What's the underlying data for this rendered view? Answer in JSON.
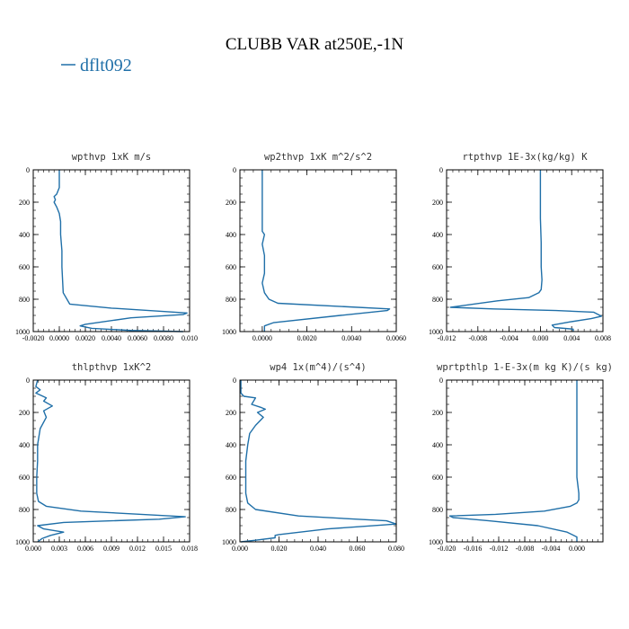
{
  "figure": {
    "title": "CLUBB VAR at250E,-1N",
    "legend": [
      {
        "label": "dflt092"
      }
    ],
    "line_color": "#1f6fa8"
  },
  "chart_data": [
    {
      "type": "line",
      "title": "wpthvp  1xK m/s",
      "xlim": [
        -0.002,
        0.01
      ],
      "ylim": [
        1000,
        0
      ],
      "xticks": [
        -0.002,
        0.0,
        0.002,
        0.004,
        0.006,
        0.008,
        0.01
      ],
      "xtick_labels": [
        "-0.0020",
        "0.0000",
        "0.0020",
        "0.0040",
        "0.0060",
        "0.0080",
        "0.010"
      ],
      "yticks": [
        0,
        200,
        400,
        600,
        800,
        1000
      ],
      "ytick_labels": [
        "0",
        "200",
        "400",
        "600",
        "800",
        "1000"
      ],
      "series": [
        {
          "x": [
            0.0,
            0.0,
            -0.0002,
            -0.0004,
            -0.0003,
            -0.0004,
            -0.0002,
            0.0,
            0.0001,
            0.0001,
            0.0002,
            0.0002,
            0.0003,
            0.0008,
            0.004,
            0.0098,
            0.0095,
            0.0055,
            0.002,
            0.0016,
            0.0025,
            0.0055,
            0.0095
          ],
          "y": [
            0,
            110,
            150,
            165,
            185,
            200,
            230,
            270,
            320,
            400,
            500,
            600,
            760,
            830,
            855,
            885,
            895,
            915,
            955,
            965,
            980,
            993,
            1000
          ]
        }
      ]
    },
    {
      "type": "line",
      "title": "wp2thvp  1xK m^2/s^2",
      "xlim": [
        -0.001,
        0.006
      ],
      "ylim": [
        1000,
        0
      ],
      "xticks": [
        0.0,
        0.002,
        0.004,
        0.006
      ],
      "xtick_labels": [
        "0.0000",
        "0.0020",
        "0.0040",
        "0.0060"
      ],
      "yticks": [
        0,
        200,
        400,
        600,
        800,
        1000
      ],
      "ytick_labels": [
        "0",
        "200",
        "400",
        "600",
        "800",
        "1000"
      ],
      "series": [
        {
          "x": [
            0.0,
            0.0,
            0.0,
            0.0001,
            0.0,
            0.0001,
            0.0001,
            0.0,
            0.0001,
            0.0003,
            0.0007,
            0.0057,
            0.0056,
            0.0035,
            0.0005,
            0.0001,
            0.0001
          ],
          "y": [
            0,
            100,
            380,
            400,
            460,
            530,
            640,
            700,
            760,
            800,
            825,
            860,
            870,
            900,
            945,
            965,
            1000
          ]
        }
      ]
    },
    {
      "type": "line",
      "title": "rtpthvp  1E-3x(kg/kg) K",
      "xlim": [
        -0.012,
        0.008
      ],
      "ylim": [
        1000,
        0
      ],
      "xticks": [
        -0.012,
        -0.008,
        -0.004,
        0.0,
        0.004,
        0.008
      ],
      "xtick_labels": [
        "-0.012",
        "-0.008",
        "-0.004",
        "0.000",
        "0.004",
        "0.008"
      ],
      "yticks": [
        0,
        200,
        400,
        600,
        800,
        1000
      ],
      "ytick_labels": [
        "0",
        "200",
        "400",
        "600",
        "800",
        "1000"
      ],
      "series": [
        {
          "x": [
            0.0,
            0.0,
            0.0,
            0.0001,
            0.0001,
            0.0002,
            0.0001,
            -0.0002,
            -0.0015,
            -0.0055,
            -0.0115,
            -0.006,
            0.002,
            0.0068,
            0.0078,
            0.0065,
            0.0038,
            0.0015,
            0.0018,
            0.0042,
            0.0042
          ],
          "y": [
            0,
            150,
            300,
            450,
            600,
            680,
            740,
            760,
            790,
            810,
            850,
            860,
            870,
            880,
            905,
            920,
            940,
            960,
            975,
            985,
            1000
          ]
        }
      ]
    },
    {
      "type": "line",
      "title": "thlpthvp  1xK^2",
      "xlim": [
        0.0,
        0.018
      ],
      "ylim": [
        1000,
        0
      ],
      "xticks": [
        0.0,
        0.003,
        0.006,
        0.009,
        0.012,
        0.015,
        0.018
      ],
      "xtick_labels": [
        "0.000",
        "0.003",
        "0.006",
        "0.009",
        "0.012",
        "0.015",
        "0.018"
      ],
      "yticks": [
        0,
        200,
        400,
        600,
        800,
        1000
      ],
      "ytick_labels": [
        "0",
        "200",
        "400",
        "600",
        "800",
        "1000"
      ],
      "series": [
        {
          "x": [
            0.0005,
            0.0003,
            0.0008,
            0.0003,
            0.0015,
            0.0012,
            0.0022,
            0.0012,
            0.0015,
            0.0008,
            0.0005,
            0.0005,
            0.0004,
            0.0004,
            0.0006,
            0.0015,
            0.0055,
            0.0175,
            0.0145,
            0.0035,
            0.0005,
            0.0012,
            0.0035,
            0.002,
            0.001,
            0.0005
          ],
          "y": [
            0,
            40,
            60,
            80,
            110,
            130,
            160,
            190,
            230,
            300,
            400,
            500,
            600,
            700,
            750,
            780,
            810,
            845,
            860,
            880,
            900,
            920,
            940,
            960,
            980,
            1000
          ]
        }
      ]
    },
    {
      "type": "line",
      "title": "wp4  1x(m^4)/(s^4)",
      "xlim": [
        0.0,
        0.08
      ],
      "ylim": [
        1000,
        0
      ],
      "xticks": [
        0.0,
        0.02,
        0.04,
        0.06,
        0.08
      ],
      "xtick_labels": [
        "0.000",
        "0.020",
        "0.040",
        "0.060",
        "0.080"
      ],
      "yticks": [
        0,
        200,
        400,
        600,
        800,
        1000
      ],
      "ytick_labels": [
        "0",
        "200",
        "400",
        "600",
        "800",
        "1000"
      ],
      "series": [
        {
          "x": [
            0.0005,
            0.0005,
            0.002,
            0.008,
            0.006,
            0.011,
            0.013,
            0.009,
            0.012,
            0.008,
            0.005,
            0.004,
            0.003,
            0.003,
            0.003,
            0.004,
            0.008,
            0.03,
            0.075,
            0.08,
            0.045,
            0.02,
            0.018,
            0.018,
            0.008,
            0.0005
          ],
          "y": [
            0,
            80,
            100,
            110,
            150,
            170,
            180,
            200,
            230,
            280,
            330,
            400,
            500,
            600,
            700,
            760,
            800,
            840,
            870,
            890,
            920,
            955,
            960,
            975,
            990,
            1000
          ]
        }
      ]
    },
    {
      "type": "line",
      "title": "wprtpthlp  1-E-3x(m kg K)/(s kg)",
      "xlim": [
        -0.02,
        0.004
      ],
      "ylim": [
        1000,
        0
      ],
      "xticks": [
        -0.02,
        -0.016,
        -0.012,
        -0.008,
        -0.004,
        0.0
      ],
      "xtick_labels": [
        "-0.020",
        "-0.016",
        "-0.012",
        "-0.008",
        "-0.004",
        "0.000"
      ],
      "yticks": [
        0,
        200,
        400,
        600,
        800,
        1000
      ],
      "ytick_labels": [
        "0",
        "200",
        "400",
        "600",
        "800",
        "1000"
      ],
      "series": [
        {
          "x": [
            0.0,
            0.0,
            0.0,
            0.0,
            0.0003,
            0.0003,
            0.0,
            -0.001,
            -0.005,
            -0.0125,
            -0.0195,
            -0.019,
            -0.0135,
            -0.006,
            -0.0015,
            0.0,
            0.0,
            0.0
          ],
          "y": [
            0,
            200,
            400,
            600,
            700,
            740,
            760,
            780,
            810,
            830,
            840,
            850,
            870,
            900,
            940,
            970,
            990,
            1000
          ]
        }
      ]
    }
  ]
}
